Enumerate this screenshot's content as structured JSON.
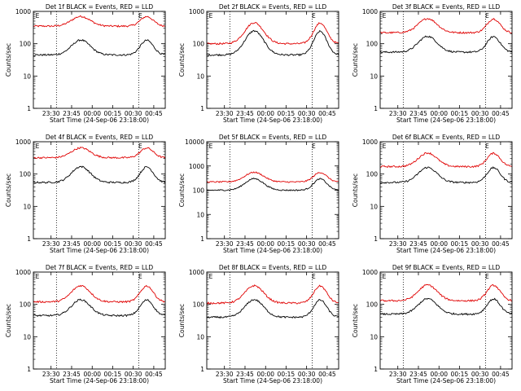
{
  "chart_data": [
    {
      "type": "line",
      "title": "Det 1f BLACK = Events, RED = LLD",
      "ylabel": "Counts/sec",
      "xlabel": "Start Time (24-Sep-06 23:18:00)",
      "x_ticks": [
        "23:30",
        "23:45",
        "00:00",
        "00:15",
        "00:30",
        "00:45"
      ],
      "y_ticks": [
        "1",
        "10",
        "100",
        "1000"
      ],
      "ylim": [
        1,
        1000
      ],
      "yscale": "log",
      "marker": "E",
      "series": [
        {
          "color": "#e00000",
          "base": 350,
          "peak": 700
        },
        {
          "color": "#000000",
          "base": 45,
          "peak": 130
        }
      ]
    },
    {
      "type": "line",
      "title": "Det 2f BLACK = Events, RED = LLD",
      "ylabel": "Counts/sec",
      "xlabel": "Start Time (24-Sep-06 23:18:00)",
      "x_ticks": [
        "23:30",
        "23:45",
        "00:00",
        "00:15",
        "00:30",
        "00:45"
      ],
      "y_ticks": [
        "1",
        "10",
        "100",
        "1000"
      ],
      "ylim": [
        1,
        1000
      ],
      "yscale": "log",
      "marker": "E",
      "series": [
        {
          "color": "#e00000",
          "base": 100,
          "peak": 450
        },
        {
          "color": "#000000",
          "base": 45,
          "peak": 250
        }
      ]
    },
    {
      "type": "line",
      "title": "Det 3f BLACK = Events, RED = LLD",
      "ylabel": "Counts/sec",
      "xlabel": "Start Time (24-Sep-06 23:18:00)",
      "x_ticks": [
        "23:30",
        "23:45",
        "00:00",
        "00:15",
        "00:30",
        "00:45"
      ],
      "y_ticks": [
        "1",
        "10",
        "100",
        "1000"
      ],
      "ylim": [
        1,
        1000
      ],
      "yscale": "log",
      "marker": "E",
      "series": [
        {
          "color": "#e00000",
          "base": 220,
          "peak": 600
        },
        {
          "color": "#000000",
          "base": 55,
          "peak": 170
        }
      ]
    },
    {
      "type": "line",
      "title": "Det 4f BLACK = Events, RED = LLD",
      "ylabel": "Counts/sec",
      "xlabel": "Start Time (24-Sep-06 23:18:00)",
      "x_ticks": [
        "23:30",
        "23:45",
        "00:00",
        "00:15",
        "00:30",
        "00:45"
      ],
      "y_ticks": [
        "1",
        "10",
        "100",
        "1000"
      ],
      "ylim": [
        1,
        1000
      ],
      "yscale": "log",
      "marker": "E",
      "series": [
        {
          "color": "#e00000",
          "base": 320,
          "peak": 650
        },
        {
          "color": "#000000",
          "base": 55,
          "peak": 170
        }
      ]
    },
    {
      "type": "line",
      "title": "Det 5f BLACK = Events, RED = LLD",
      "ylabel": "Counts/sec",
      "xlabel": "Start Time (24-Sep-06 23:18:00)",
      "x_ticks": [
        "23:30",
        "23:45",
        "00:00",
        "00:15",
        "00:30",
        "00:45"
      ],
      "y_ticks": [
        "1",
        "10",
        "100",
        "1000",
        "10000"
      ],
      "ylim": [
        1,
        10000
      ],
      "yscale": "log",
      "marker": "E",
      "series": [
        {
          "color": "#e00000",
          "base": 220,
          "peak": 550
        },
        {
          "color": "#000000",
          "base": 100,
          "peak": 300
        }
      ]
    },
    {
      "type": "line",
      "title": "Det 6f BLACK = Events, RED = LLD",
      "ylabel": "Counts/sec",
      "xlabel": "Start Time (24-Sep-06 23:18:00)",
      "x_ticks": [
        "23:30",
        "23:45",
        "00:00",
        "00:15",
        "00:30",
        "00:45"
      ],
      "y_ticks": [
        "1",
        "10",
        "100",
        "1000"
      ],
      "ylim": [
        1,
        1000
      ],
      "yscale": "log",
      "marker": "E",
      "series": [
        {
          "color": "#e00000",
          "base": 170,
          "peak": 450
        },
        {
          "color": "#000000",
          "base": 55,
          "peak": 160
        }
      ]
    },
    {
      "type": "line",
      "title": "Det 7f BLACK = Events, RED = LLD",
      "ylabel": "Counts/sec",
      "xlabel": "Start Time (24-Sep-06 23:18:00)",
      "x_ticks": [
        "23:30",
        "23:45",
        "00:00",
        "00:15",
        "00:30",
        "00:45"
      ],
      "y_ticks": [
        "1",
        "10",
        "100",
        "1000"
      ],
      "ylim": [
        1,
        1000
      ],
      "yscale": "log",
      "marker": "E",
      "series": [
        {
          "color": "#e00000",
          "base": 120,
          "peak": 380
        },
        {
          "color": "#000000",
          "base": 45,
          "peak": 140
        }
      ]
    },
    {
      "type": "line",
      "title": "Det 8f BLACK = Events, RED = LLD",
      "ylabel": "Counts/sec",
      "xlabel": "Start Time (24-Sep-06 23:18:00)",
      "x_ticks": [
        "23:30",
        "23:45",
        "00:00",
        "00:15",
        "00:30",
        "00:45"
      ],
      "y_ticks": [
        "1",
        "10",
        "100",
        "1000"
      ],
      "ylim": [
        1,
        1000
      ],
      "yscale": "log",
      "marker": "E",
      "series": [
        {
          "color": "#e00000",
          "base": 110,
          "peak": 380
        },
        {
          "color": "#000000",
          "base": 40,
          "peak": 140
        }
      ]
    },
    {
      "type": "line",
      "title": "Det 9f BLACK = Events, RED = LLD",
      "ylabel": "Counts/sec",
      "xlabel": "Start Time (24-Sep-06 23:18:00)",
      "x_ticks": [
        "23:30",
        "23:45",
        "00:00",
        "00:15",
        "00:30",
        "00:45"
      ],
      "y_ticks": [
        "1",
        "10",
        "100",
        "1000"
      ],
      "ylim": [
        1,
        1000
      ],
      "yscale": "log",
      "marker": "E",
      "series": [
        {
          "color": "#e00000",
          "base": 130,
          "peak": 400
        },
        {
          "color": "#000000",
          "base": 50,
          "peak": 150
        }
      ]
    }
  ]
}
